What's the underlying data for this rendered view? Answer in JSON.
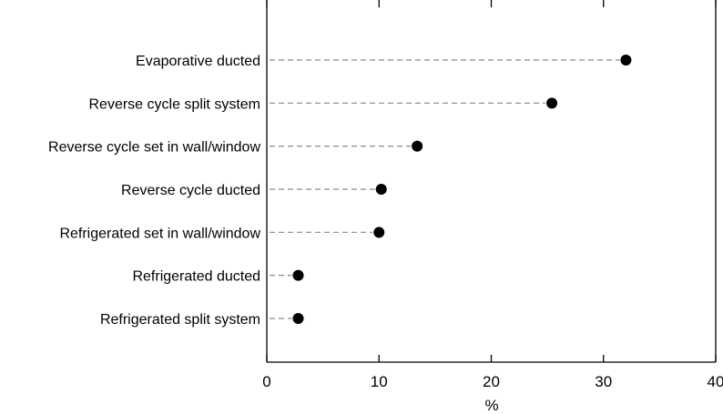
{
  "chart_data": {
    "type": "scatter",
    "title": "",
    "xlabel": "%",
    "ylabel": "",
    "xlim": [
      0,
      40
    ],
    "x_ticks": [
      0,
      10,
      20,
      30,
      40
    ],
    "x_tick_labels": [
      "0",
      "10",
      "20",
      "30",
      "40"
    ],
    "grid": false,
    "legend": "none",
    "categories": [
      "Evaporative ducted",
      "Reverse cycle split system",
      "Reverse cycle set in wall/window",
      "Reverse cycle ducted",
      "Refrigerated set in wall/window",
      "Refrigerated ducted",
      "Refrigerated split system"
    ],
    "values": [
      32.0,
      25.4,
      13.4,
      10.2,
      10.0,
      2.8,
      2.8
    ],
    "colors": {
      "marker": "#000000",
      "leader": "#8a8a8a",
      "axis": "#000000"
    }
  }
}
